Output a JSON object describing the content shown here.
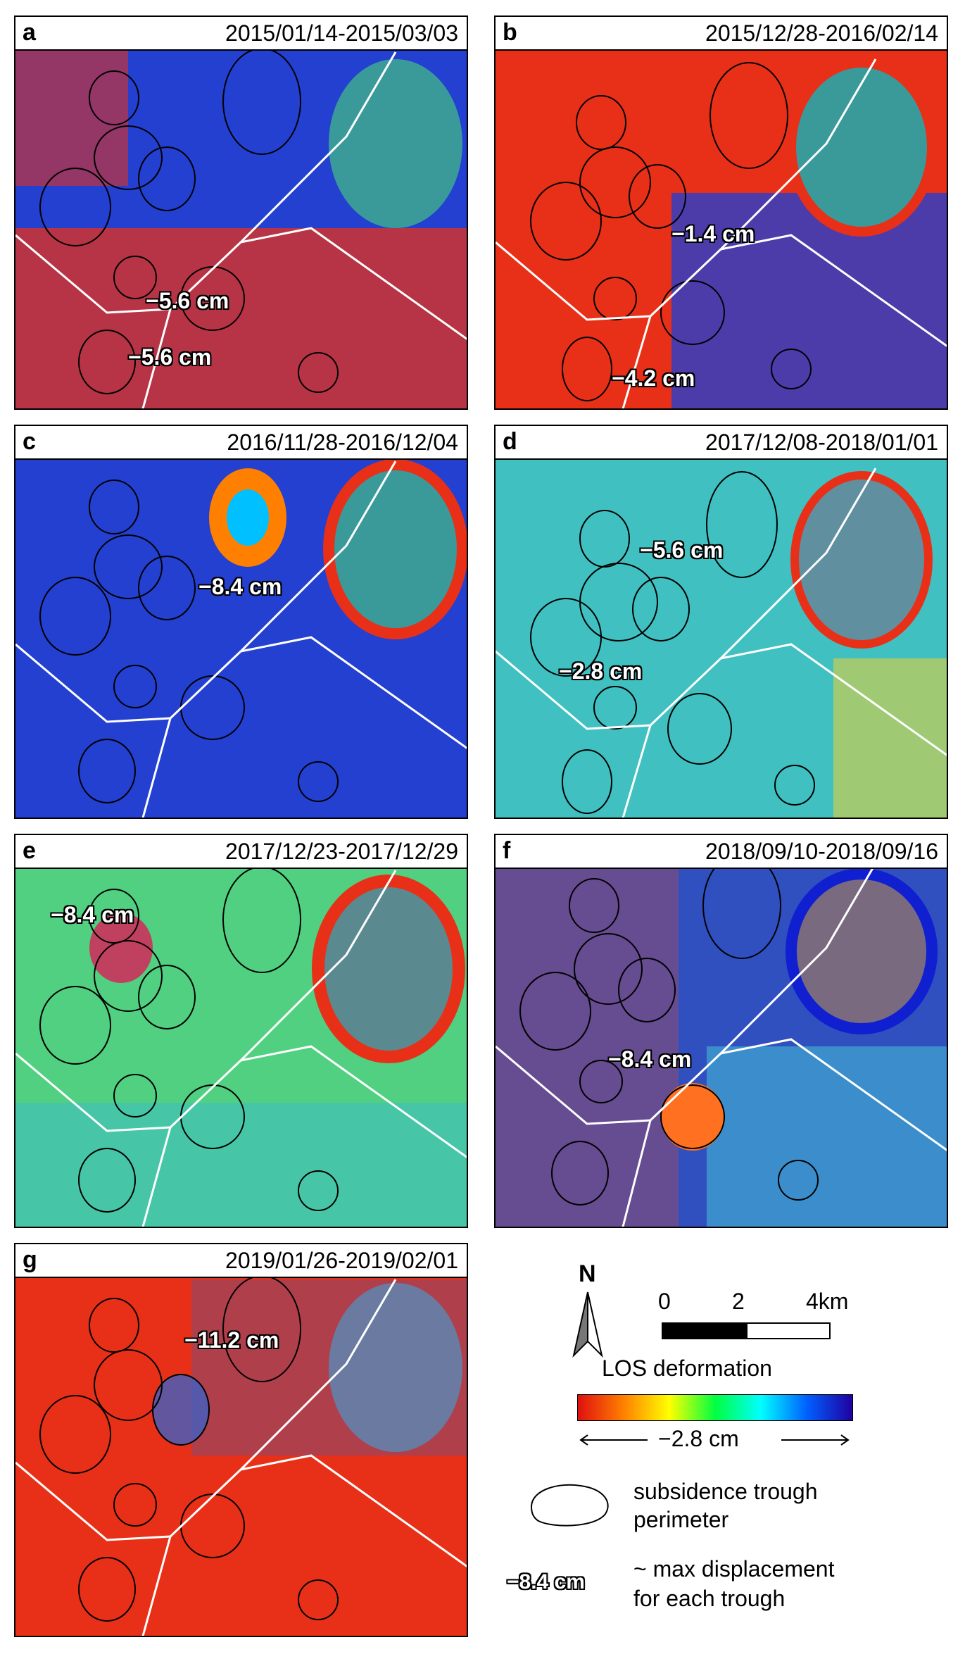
{
  "panels": [
    {
      "letter": "a",
      "dates": "2015/01/14-2015/03/03",
      "labels": [
        "−5.6 cm",
        "−5.6 cm"
      ]
    },
    {
      "letter": "b",
      "dates": "2015/12/28-2016/02/14",
      "labels": [
        "−1.4 cm",
        "−4.2 cm"
      ]
    },
    {
      "letter": "c",
      "dates": "2016/11/28-2016/12/04",
      "labels": [
        "−8.4 cm"
      ]
    },
    {
      "letter": "d",
      "dates": "2017/12/08-2018/01/01",
      "labels": [
        "−5.6 cm",
        "−2.8 cm"
      ]
    },
    {
      "letter": "e",
      "dates": "2017/12/23-2017/12/29",
      "labels": [
        "−8.4 cm"
      ]
    },
    {
      "letter": "f",
      "dates": "2018/09/10-2018/09/16",
      "labels": [
        "−8.4 cm"
      ]
    },
    {
      "letter": "g",
      "dates": "2019/01/26-2019/02/01",
      "labels": [
        "−11.2 cm"
      ]
    }
  ],
  "legend": {
    "north": "N",
    "scale_ticks": [
      "0",
      "2",
      "4km"
    ],
    "colorbar_title": "LOS deformation",
    "colorbar_range": "−2.8 cm",
    "trough_label_line1": "subsidence trough",
    "trough_label_line2": "perimeter",
    "example_value": "−8.4 cm",
    "max_label_line1": "~ max displacement",
    "max_label_line2": "for each trough"
  },
  "colors": {
    "colorbar": [
      "#e01010",
      "#ff8000",
      "#ffff00",
      "#00ff40",
      "#00ffff",
      "#0060ff",
      "#2000a0"
    ]
  }
}
